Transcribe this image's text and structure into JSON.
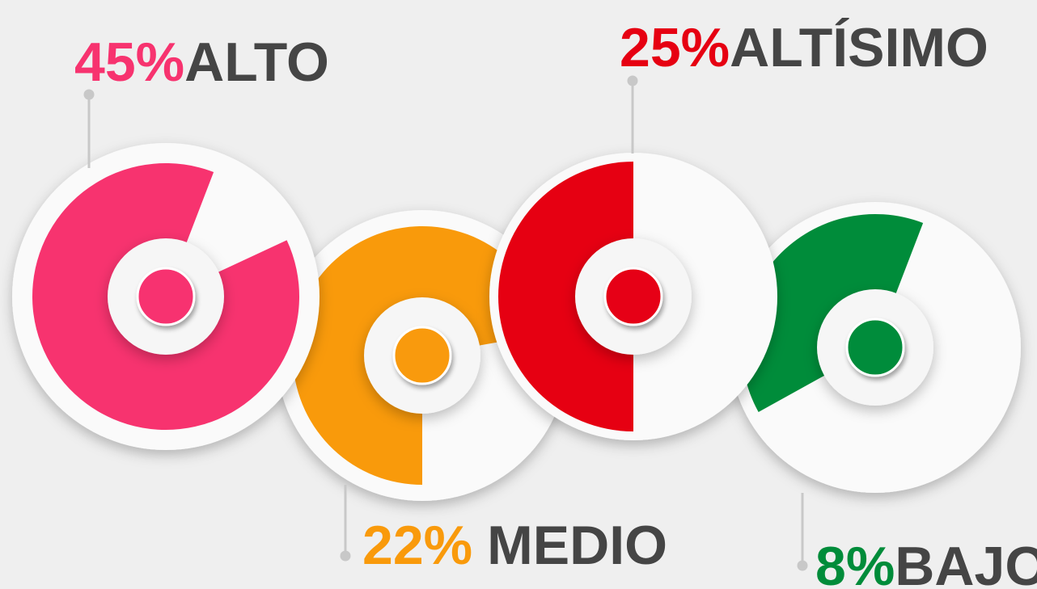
{
  "items": [
    {
      "percent": "45%",
      "level": "ALTO"
    },
    {
      "percent": "22%",
      "level": "MEDIO"
    },
    {
      "percent": "25%",
      "level": "ALTÍSIMO"
    },
    {
      "percent": "8%",
      "level": "BAJO"
    }
  ]
}
